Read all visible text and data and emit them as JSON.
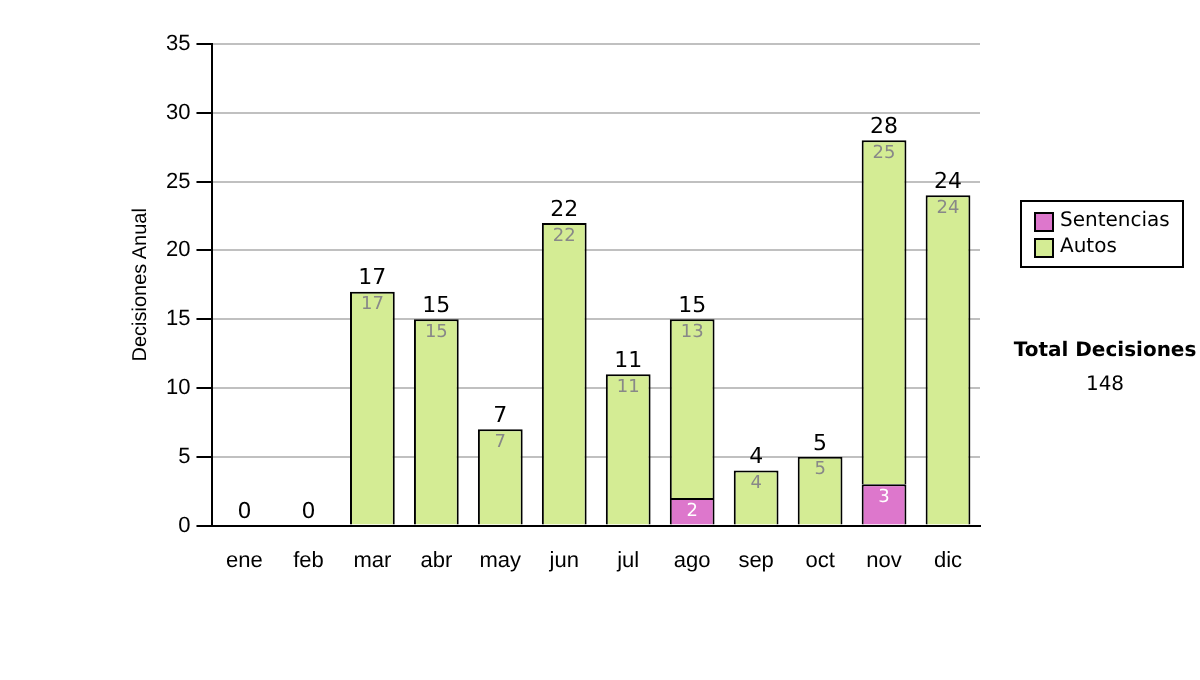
{
  "chart_data": {
    "type": "bar",
    "stacked": true,
    "ylabel": "Decisiones Anual",
    "categories": [
      "ene",
      "feb",
      "mar",
      "abr",
      "may",
      "jun",
      "jul",
      "ago",
      "sep",
      "oct",
      "nov",
      "dic"
    ],
    "series": [
      {
        "name": "Sentencias",
        "color": "#dd77cc",
        "values": [
          0,
          0,
          0,
          0,
          0,
          0,
          0,
          2,
          0,
          0,
          3,
          0
        ],
        "value_labels": [
          null,
          null,
          null,
          null,
          null,
          null,
          null,
          "2",
          null,
          null,
          "3",
          null
        ]
      },
      {
        "name": "Autos",
        "color": "#d4ec94",
        "values": [
          0,
          0,
          17,
          15,
          7,
          22,
          11,
          13,
          4,
          5,
          25,
          24
        ],
        "value_labels": [
          null,
          null,
          "17",
          "15",
          "7",
          "22",
          "11",
          "13",
          "4",
          "5",
          "25",
          "24"
        ]
      }
    ],
    "totals": [
      "0",
      "0",
      "17",
      "15",
      "7",
      "22",
      "11",
      "15",
      "4",
      "5",
      "28",
      "24"
    ],
    "ylim": [
      0,
      35
    ],
    "yticks": [
      0,
      5,
      10,
      15,
      20,
      25,
      30,
      35
    ],
    "grid": "y",
    "legend": "right",
    "annotations": [
      "Total Decisiones",
      "148"
    ]
  }
}
